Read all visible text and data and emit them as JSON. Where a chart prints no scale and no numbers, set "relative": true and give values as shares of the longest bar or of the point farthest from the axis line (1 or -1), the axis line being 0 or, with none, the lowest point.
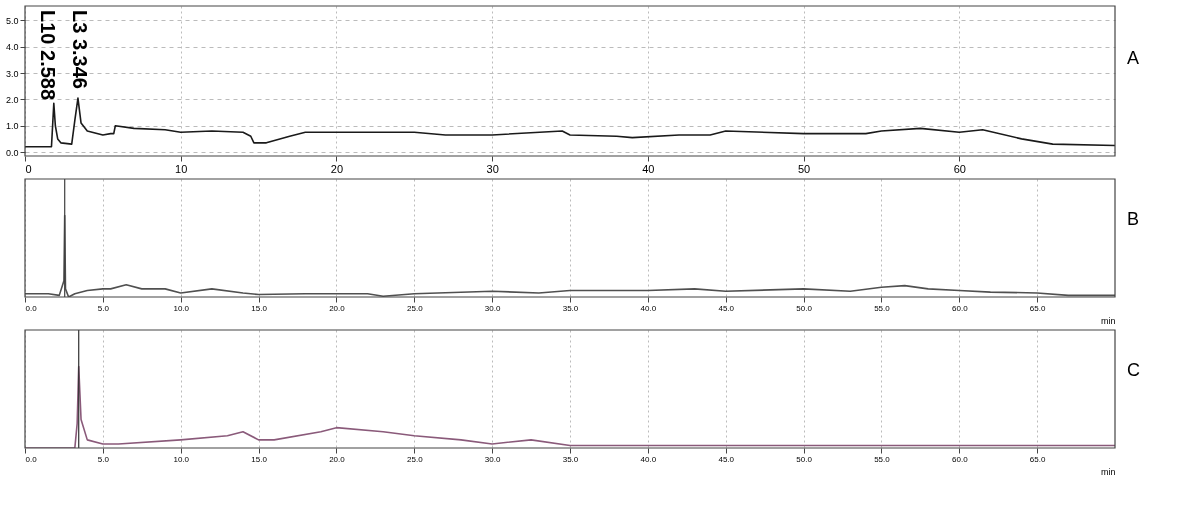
{
  "chart_data": [
    {
      "type": "line",
      "annotations": [
        "A",
        "L10 2.588",
        "L3 3.346"
      ],
      "series": [
        {
          "color": "#1a1a1a",
          "x": [
            0,
            1.7,
            1.85,
            1.95,
            2.1,
            2.3,
            3.0,
            3.2,
            3.4,
            3.6,
            4.0,
            5.0,
            5.5,
            5.7,
            5.8,
            7,
            9,
            10,
            12,
            14,
            14.5,
            14.7,
            15.5,
            17,
            18,
            20,
            25,
            27,
            30,
            34.5,
            35,
            38,
            39,
            42,
            44,
            45,
            50,
            54,
            55,
            57.5,
            60,
            61.5,
            64,
            66,
            70
          ],
          "values": [
            0.2,
            0.2,
            1.85,
            1.0,
            0.5,
            0.35,
            0.3,
            1.2,
            2.05,
            1.1,
            0.8,
            0.65,
            0.7,
            0.7,
            1.0,
            0.9,
            0.85,
            0.75,
            0.8,
            0.75,
            0.6,
            0.35,
            0.35,
            0.6,
            0.75,
            0.75,
            0.75,
            0.65,
            0.65,
            0.8,
            0.65,
            0.6,
            0.55,
            0.65,
            0.65,
            0.8,
            0.7,
            0.7,
            0.8,
            0.9,
            0.75,
            0.85,
            0.5,
            0.3,
            0.25
          ]
        }
      ],
      "xlim": [
        0,
        70
      ],
      "xticks": [
        0,
        10,
        20,
        30,
        40,
        50,
        60
      ],
      "ylim": [
        -0.15,
        5.55
      ],
      "yticks": [
        {
          "value": 0,
          "label": "0.0"
        },
        {
          "value": 1,
          "label": "1.0"
        },
        {
          "value": 2,
          "label": "2.0"
        },
        {
          "value": 3,
          "label": "3.0"
        },
        {
          "value": 4,
          "label": "4.0"
        },
        {
          "value": 5,
          "label": "5.0"
        }
      ],
      "grid": true,
      "line_style": "solid",
      "marker": "none"
    },
    {
      "type": "line",
      "relative": true,
      "xlabel": "min",
      "annotations": [
        "B"
      ],
      "series": [
        {
          "color": "#505050",
          "x": [
            0,
            1.5,
            2.2,
            2.5,
            2.55,
            2.6,
            2.8,
            3.2,
            4,
            5,
            5.5,
            6.5,
            7.5,
            9,
            10,
            12,
            14,
            15,
            18,
            20,
            22,
            23,
            25,
            30,
            33,
            35,
            40,
            43,
            45,
            50,
            53,
            55,
            56.5,
            58,
            60,
            62,
            65,
            67,
            70
          ],
          "values": [
            0.04,
            0.04,
            0.02,
            0.2,
            1.0,
            0.1,
            0.0,
            0.04,
            0.08,
            0.1,
            0.1,
            0.15,
            0.1,
            0.1,
            0.05,
            0.1,
            0.05,
            0.03,
            0.04,
            0.04,
            0.04,
            0.01,
            0.04,
            0.07,
            0.05,
            0.08,
            0.08,
            0.1,
            0.07,
            0.1,
            0.07,
            0.12,
            0.14,
            0.1,
            0.08,
            0.06,
            0.05,
            0.02,
            0.02
          ]
        }
      ],
      "ref_lines": [
        {
          "axis": "x",
          "value": 2.55,
          "color": "#404040"
        }
      ],
      "xlim": [
        0,
        70
      ],
      "xticks": [
        {
          "value": 0,
          "label": "0.0"
        },
        {
          "value": 5,
          "label": "5.0"
        },
        {
          "value": 10,
          "label": "10.0"
        },
        {
          "value": 15,
          "label": "15.0"
        },
        {
          "value": 20,
          "label": "20.0"
        },
        {
          "value": 25,
          "label": "25.0"
        },
        {
          "value": 30,
          "label": "30.0"
        },
        {
          "value": 35,
          "label": "35.0"
        },
        {
          "value": 40,
          "label": "40.0"
        },
        {
          "value": 45,
          "label": "45.0"
        },
        {
          "value": 50,
          "label": "50.0"
        },
        {
          "value": 55,
          "label": "55.0"
        },
        {
          "value": 60,
          "label": "60.0"
        },
        {
          "value": 65,
          "label": "65.0"
        }
      ],
      "grid": "x",
      "line_style": "solid",
      "marker": "none"
    },
    {
      "type": "line",
      "relative": true,
      "xlabel": "min",
      "annotations": [
        "C"
      ],
      "series": [
        {
          "color": "#8a5a7a",
          "x": [
            0,
            3.2,
            3.35,
            3.45,
            3.6,
            4,
            5,
            6,
            10,
            13,
            14,
            15,
            16,
            19,
            20,
            23,
            25,
            28,
            30,
            32.5,
            35,
            70
          ],
          "values": [
            0,
            0,
            0.3,
            1.0,
            0.35,
            0.1,
            0.05,
            0.05,
            0.1,
            0.15,
            0.2,
            0.1,
            0.1,
            0.2,
            0.25,
            0.2,
            0.15,
            0.1,
            0.05,
            0.1,
            0.03,
            0.03
          ]
        }
      ],
      "ref_lines": [
        {
          "axis": "x",
          "value": 3.45,
          "color": "#303030"
        }
      ],
      "xlim": [
        0,
        70
      ],
      "xticks": [
        {
          "value": 0,
          "label": "0.0"
        },
        {
          "value": 5,
          "label": "5.0"
        },
        {
          "value": 10,
          "label": "10.0"
        },
        {
          "value": 15,
          "label": "15.0"
        },
        {
          "value": 20,
          "label": "20.0"
        },
        {
          "value": 25,
          "label": "25.0"
        },
        {
          "value": 30,
          "label": "30.0"
        },
        {
          "value": 35,
          "label": "35.0"
        },
        {
          "value": 40,
          "label": "40.0"
        },
        {
          "value": 45,
          "label": "45.0"
        },
        {
          "value": 50,
          "label": "50.0"
        },
        {
          "value": 55,
          "label": "55.0"
        },
        {
          "value": 60,
          "label": "60.0"
        },
        {
          "value": 65,
          "label": "65.0"
        }
      ],
      "grid": "x",
      "line_style": "solid",
      "marker": "none"
    }
  ]
}
